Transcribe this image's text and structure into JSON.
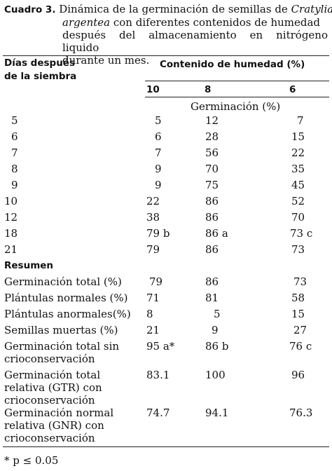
{
  "caption": {
    "label": "Cuadro 3.",
    "line1_pre": "Dinámica de la germinación de semillas de ",
    "line1_italic": "Cratylia",
    "line2_italic": "argentea",
    "line2_rest": " con diferentes contenidos de humedad",
    "line3": "después del almacenamiento en nitrógeno liquido",
    "line4": "durante un mes."
  },
  "header": {
    "row_label_1": "Días después",
    "row_label_2": "de la siembra",
    "group_title": "Contenido de humedad (%)",
    "col1": "10",
    "col2": "8",
    "col3": "6",
    "sub_title": "Germinación (%)"
  },
  "rows": [
    {
      "label": "5",
      "c1": "5",
      "c2": "12",
      "c3": "7"
    },
    {
      "label": "6",
      "c1": "6",
      "c2": "28",
      "c3": "15"
    },
    {
      "label": "7",
      "c1": "7",
      "c2": "56",
      "c3": "22"
    },
    {
      "label": "8",
      "c1": "9",
      "c2": "70",
      "c3": "35"
    },
    {
      "label": "9",
      "c1": "9",
      "c2": "75",
      "c3": "45"
    },
    {
      "label": "10",
      "c1": "22",
      "c2": "86",
      "c3": "52"
    },
    {
      "label": "12",
      "c1": "38",
      "c2": "86",
      "c3": "70"
    },
    {
      "label": "18",
      "c1": "79 b",
      "c2": "86 a",
      "c3": "73 c"
    },
    {
      "label": "21",
      "c1": "79",
      "c2": "86",
      "c3": "73"
    }
  ],
  "summary_title": "Resumen",
  "summary": [
    {
      "l1": "Germinación total  (%)",
      "c1": "79",
      "c2": "86",
      "c3": "73"
    },
    {
      "l1": "Plántulas normales (%)",
      "c1": "71",
      "c2": "81",
      "c3": "58"
    },
    {
      "l1": "Plántulas anormales(%)",
      "c1": "8",
      "c2": "5",
      "c3": "15"
    },
    {
      "l1": "Semillas muertas (%)",
      "c1": "21",
      "c2": "9",
      "c3": "27"
    },
    {
      "l1": "Germinación total sin",
      "l2": "crioconservación",
      "c1": "95 a*",
      "c2": "86 b",
      "c3": "76 c"
    },
    {
      "l1": "Germinación total",
      "l2": "relativa (GTR) con",
      "l3": "crioconservación",
      "c1": "83.1",
      "c2": "100",
      "c3": "96"
    },
    {
      "l1": "Germinación normal",
      "l2": "relativa (GNR) con",
      "l3": "crioconservación",
      "c1": "74.7",
      "c2": "94.1",
      "c3": "76.3"
    }
  ],
  "footnote": "*   p ≤ 0.05"
}
